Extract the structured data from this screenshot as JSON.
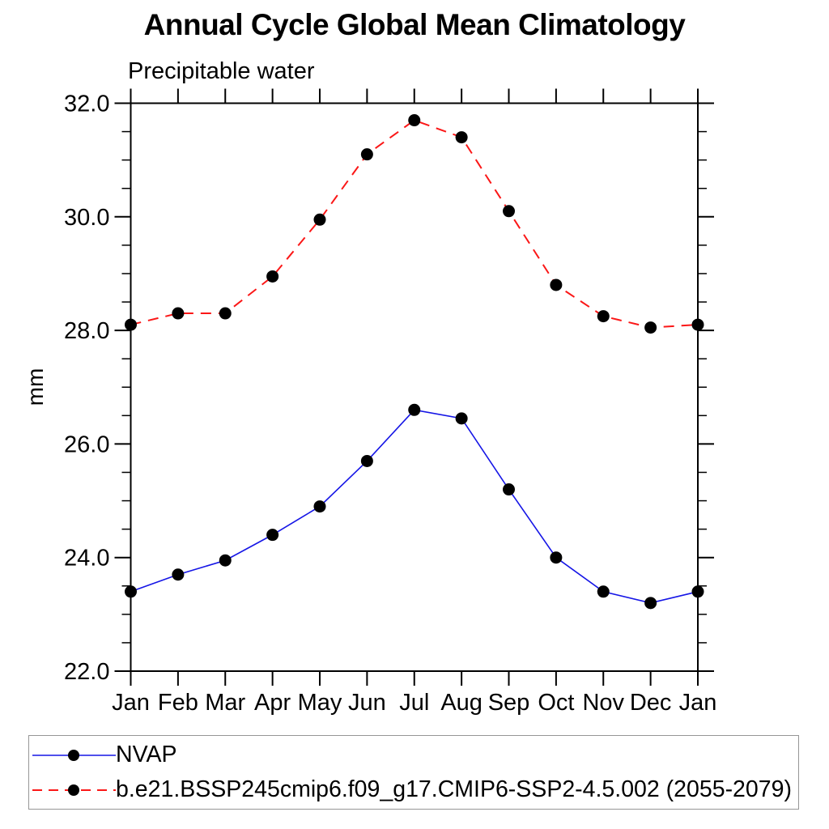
{
  "header": {
    "title": "Annual Cycle Global Mean Climatology",
    "subtitle": "Precipitable water"
  },
  "axes": {
    "ylabel": "mm"
  },
  "chart_data": {
    "type": "line",
    "title": "Annual Cycle Global Mean Climatology",
    "subtitle": "Precipitable water",
    "xlabel": "",
    "ylabel": "mm",
    "x_categories": [
      "Jan",
      "Feb",
      "Mar",
      "Apr",
      "May",
      "Jun",
      "Jul",
      "Aug",
      "Sep",
      "Oct",
      "Nov",
      "Dec",
      "Jan"
    ],
    "ylim": [
      22.0,
      32.0
    ],
    "ytick_major": [
      22.0,
      24.0,
      26.0,
      28.0,
      30.0,
      32.0
    ],
    "ytick_minor_step": 0.5,
    "grid": "off",
    "legend_position": "bottom-outside-box",
    "frame_color": "#000000",
    "marker_color": "#000000",
    "series": [
      {
        "name": "NVAP",
        "color": "#1515e6",
        "line_style": "solid",
        "marker": "filled-circle",
        "values": [
          23.4,
          23.7,
          23.95,
          24.4,
          24.9,
          25.7,
          26.6,
          26.45,
          25.2,
          24.0,
          23.4,
          23.2,
          23.4
        ]
      },
      {
        "name": "b.e21.BSSP245cmip6.f09_g17.CMIP6-SSP2-4.5.002 (2055-2079)",
        "color": "#fb1717",
        "line_style": "dashed",
        "marker": "filled-circle",
        "values": [
          28.1,
          28.3,
          28.3,
          28.95,
          29.95,
          31.1,
          31.7,
          31.4,
          30.1,
          28.8,
          28.25,
          28.05,
          28.1
        ]
      }
    ]
  }
}
